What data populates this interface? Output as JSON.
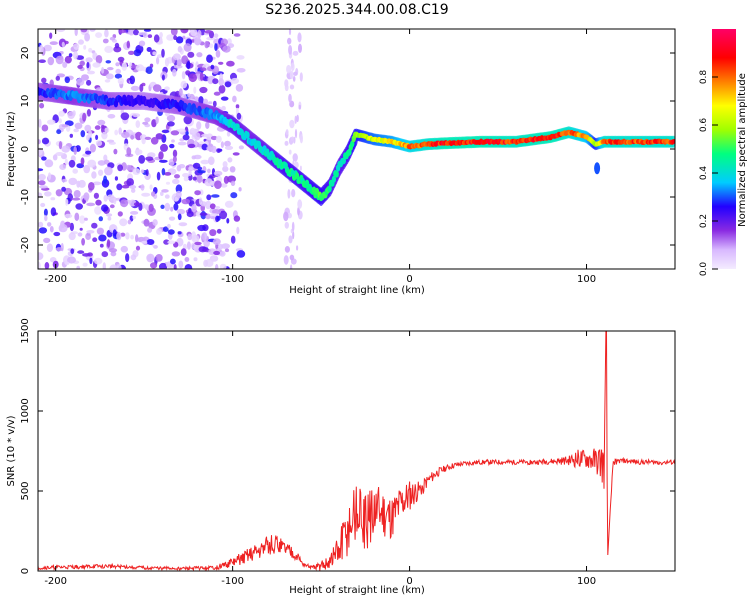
{
  "title": "S236.2025.344.00.08.C19",
  "chart_data": [
    {
      "type": "heatmap",
      "name": "spectrogram",
      "xlabel": "Height of straight line (km)",
      "ylabel": "Frequency (Hz)",
      "xlim": [
        -210,
        150
      ],
      "ylim": [
        -25,
        25
      ],
      "xticks": [
        -200,
        -100,
        0,
        100
      ],
      "xtick_labels": [
        "-200",
        "-100",
        "0",
        "100"
      ],
      "yticks": [
        20,
        10,
        0,
        -10,
        -20
      ],
      "ytick_labels": [
        "20",
        "10",
        "0",
        "-10",
        "-20"
      ],
      "colorbar": {
        "label": "Normalized spectral amplitude",
        "range": [
          0,
          1
        ],
        "ticks": [
          0.0,
          0.2,
          0.4,
          0.6,
          0.8
        ],
        "tick_labels": [
          "0.0",
          "0.2",
          "0.4",
          "0.6",
          "0.8"
        ],
        "colormap": [
          "#f4ecff",
          "#d8b8ff",
          "#8a2be2",
          "#2200ff",
          "#00ccff",
          "#00ff80",
          "#a0ff00",
          "#ffff00",
          "#ff8000",
          "#ff0000",
          "#ff0066"
        ]
      },
      "ridge": {
        "x": [
          -210,
          -190,
          -170,
          -150,
          -130,
          -110,
          -100,
          -90,
          -80,
          -70,
          -60,
          -50,
          -45,
          -40,
          -35,
          -30,
          -20,
          -10,
          0,
          10,
          20,
          40,
          60,
          80,
          90,
          100,
          105,
          110,
          150
        ],
        "y": [
          12,
          11,
          10,
          10,
          9,
          7,
          5,
          2,
          -1,
          -4,
          -7,
          -10,
          -8,
          -4,
          -1,
          3,
          2,
          1.5,
          0.5,
          1,
          1.2,
          1.5,
          1.5,
          2.5,
          3.5,
          2.5,
          1,
          1.5,
          1.5
        ],
        "peak_amplitude": [
          0.3,
          0.35,
          0.3,
          0.25,
          0.3,
          0.35,
          0.45,
          0.4,
          0.45,
          0.5,
          0.5,
          0.55,
          0.5,
          0.45,
          0.5,
          0.6,
          0.7,
          0.75,
          0.85,
          0.9,
          0.95,
          0.95,
          0.92,
          0.95,
          0.9,
          0.8,
          0.6,
          0.9,
          0.9
        ]
      }
    },
    {
      "type": "line",
      "name": "snr",
      "xlabel": "Height of straight line (km)",
      "ylabel": "SNR (10 * v/v)",
      "xlim": [
        -210,
        150
      ],
      "ylim": [
        0,
        1500
      ],
      "xticks": [
        -200,
        -100,
        0,
        100
      ],
      "xtick_labels": [
        "-200",
        "-100",
        "0",
        "100"
      ],
      "yticks": [
        0,
        500,
        1000,
        1500
      ],
      "ytick_labels": [
        "0",
        "500",
        "1000",
        "1500"
      ],
      "color": "#ee2222",
      "x": [
        -210,
        -190,
        -170,
        -150,
        -130,
        -110,
        -100,
        -90,
        -80,
        -75,
        -70,
        -65,
        -60,
        -55,
        -50,
        -45,
        -40,
        -35,
        -30,
        -25,
        -20,
        -15,
        -10,
        -5,
        0,
        5,
        10,
        15,
        20,
        25,
        30,
        40,
        50,
        60,
        70,
        80,
        90,
        95,
        100,
        105,
        108,
        110,
        111,
        112,
        115,
        120,
        130,
        140,
        150
      ],
      "y": [
        20,
        25,
        30,
        20,
        15,
        20,
        50,
        110,
        160,
        170,
        140,
        110,
        40,
        20,
        30,
        60,
        110,
        240,
        350,
        300,
        380,
        360,
        330,
        420,
        470,
        500,
        560,
        610,
        640,
        660,
        670,
        680,
        680,
        680,
        680,
        685,
        690,
        700,
        700,
        690,
        680,
        650,
        1500,
        100,
        680,
        690,
        680,
        680,
        680
      ],
      "noise_amplitude": [
        12,
        12,
        12,
        10,
        10,
        12,
        30,
        50,
        60,
        60,
        50,
        40,
        15,
        10,
        30,
        60,
        120,
        180,
        200,
        180,
        170,
        160,
        140,
        120,
        100,
        60,
        40,
        30,
        20,
        18,
        15,
        15,
        15,
        15,
        15,
        18,
        30,
        60,
        60,
        80,
        120,
        160,
        0,
        0,
        20,
        15,
        15,
        15,
        15
      ]
    }
  ]
}
